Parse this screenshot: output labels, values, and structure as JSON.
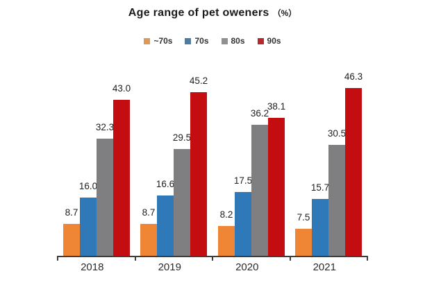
{
  "title_main": "Age range of pet oweners",
  "title_suffix": "（%）",
  "legend": [
    {
      "label": "~70s",
      "swatch_color": "#DB9B57"
    },
    {
      "label": "70s",
      "swatch_color": "#4E7CA0"
    },
    {
      "label": "80s",
      "swatch_color": "#909092"
    },
    {
      "label": "90s",
      "swatch_color": "#B42A2E"
    }
  ],
  "chart_data": {
    "type": "bar",
    "title": "Age range of pet oweners （%）",
    "categories": [
      "2018",
      "2019",
      "2020",
      "2021"
    ],
    "series": [
      {
        "name": "~70s",
        "color": "#EF8636",
        "values": [
          8.7,
          8.7,
          8.2,
          7.5
        ]
      },
      {
        "name": "70s",
        "color": "#2F79B9",
        "values": [
          16.0,
          16.6,
          17.5,
          15.7
        ]
      },
      {
        "name": "80s",
        "color": "#7F7F81",
        "values": [
          32.3,
          29.5,
          36.2,
          30.5
        ]
      },
      {
        "name": "90s",
        "color": "#C30D11",
        "values": [
          43.0,
          45.2,
          38.1,
          46.3
        ]
      }
    ],
    "ylim": [
      0,
      50
    ],
    "xlabel": "",
    "ylabel": "",
    "grid": false,
    "legend_position": "top",
    "value_labels": "one_decimal"
  }
}
